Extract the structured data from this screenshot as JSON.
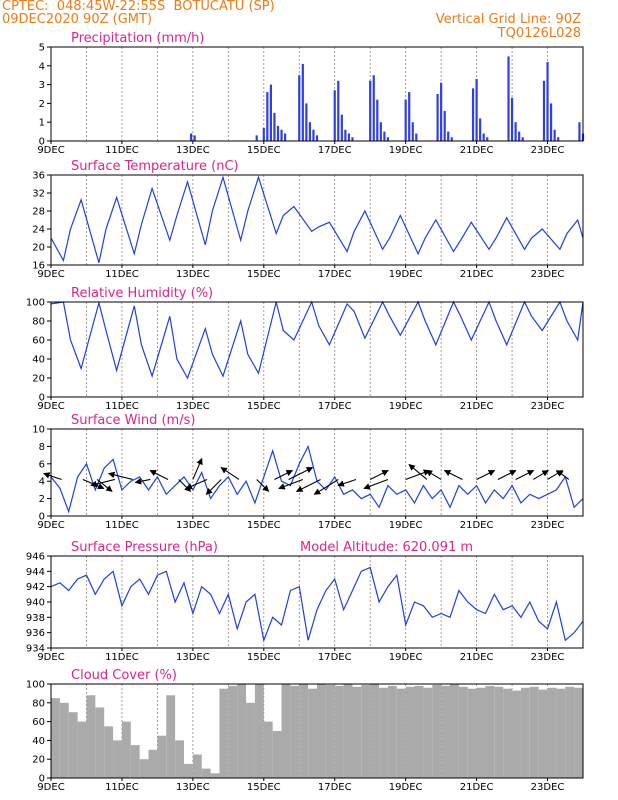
{
  "header": {
    "line1_left": "CPTEC:  048:45W-22:55S  BOTUCATU (SP)",
    "line2_left": "09DEC2020 90Z (GMT)",
    "line1_right": "Vertical Grid Line: 90Z",
    "line2_right": "TQ0126L028"
  },
  "colors": {
    "header": "#f07a14",
    "title": "#e0228f",
    "line": "#2040e0",
    "bar": "#2f3fe6",
    "cloud": "#aaaaaa"
  },
  "chart_data": [
    {
      "type": "bar",
      "title": "Precipitation (mm/h)",
      "ylim": [
        0,
        5
      ],
      "yticks": [
        0,
        1,
        2,
        3,
        4,
        5
      ],
      "xticks": [
        "9DEC",
        "11DEC",
        "13DEC",
        "15DEC",
        "17DEC",
        "19DEC",
        "21DEC",
        "23DEC"
      ],
      "xlim_days": 15,
      "x_days": [
        3.95,
        4.05,
        5.8,
        6.0,
        6.1,
        6.2,
        6.3,
        6.4,
        6.5,
        6.6,
        7.0,
        7.1,
        7.2,
        7.3,
        7.4,
        7.5,
        8.0,
        8.1,
        8.2,
        8.3,
        8.4,
        8.5,
        9.0,
        9.1,
        9.2,
        9.3,
        9.4,
        9.5,
        10.0,
        10.1,
        10.2,
        10.3,
        10.9,
        11.0,
        11.1,
        11.2,
        11.3,
        11.9,
        12.0,
        12.1,
        12.2,
        12.3,
        12.9,
        13.0,
        13.1,
        13.2,
        13.3,
        13.9,
        14.0,
        14.1,
        14.2,
        14.3,
        14.9,
        15.0
      ],
      "values": [
        0.4,
        0.3,
        0.3,
        0.7,
        2.6,
        3.0,
        1.5,
        0.8,
        0.6,
        0.4,
        3.5,
        4.1,
        2.0,
        1.0,
        0.6,
        0.3,
        2.7,
        3.2,
        1.4,
        0.6,
        0.4,
        0.2,
        3.2,
        3.5,
        2.2,
        1.0,
        0.5,
        0.2,
        2.2,
        2.6,
        1.0,
        0.4,
        2.5,
        3.1,
        1.6,
        0.5,
        0.2,
        2.8,
        3.3,
        1.2,
        0.4,
        0.2,
        4.5,
        2.3,
        1.0,
        0.5,
        0.2,
        3.2,
        4.2,
        2.0,
        0.6,
        0.2,
        1.0,
        0.4
      ]
    },
    {
      "type": "line",
      "title": "Surface Temperature (nC)",
      "ylim": [
        16,
        36
      ],
      "yticks": [
        16,
        20,
        24,
        28,
        32,
        36
      ],
      "xticks": [
        "9DEC",
        "11DEC",
        "13DEC",
        "15DEC",
        "17DEC",
        "19DEC",
        "21DEC",
        "23DEC"
      ],
      "xlim_days": 15,
      "x_days": [
        0,
        0.35,
        0.55,
        0.85,
        1.35,
        1.55,
        1.85,
        2.35,
        2.55,
        2.85,
        3.35,
        3.55,
        3.85,
        4.35,
        4.55,
        4.85,
        5.35,
        5.55,
        5.85,
        6.35,
        6.55,
        6.85,
        7.35,
        7.55,
        7.85,
        8.35,
        8.55,
        8.85,
        9.35,
        9.55,
        9.85,
        10.35,
        10.55,
        10.85,
        11.35,
        11.55,
        11.85,
        12.35,
        12.55,
        12.85,
        13.35,
        13.55,
        13.85,
        14.35,
        14.55,
        14.85,
        15.0
      ],
      "values": [
        22,
        17,
        24,
        30.5,
        16.5,
        24,
        31,
        18.5,
        25,
        33,
        21.5,
        27,
        34.5,
        20.5,
        28,
        35.5,
        21.5,
        28,
        35.5,
        23,
        27,
        29,
        23.5,
        24.5,
        25.5,
        19,
        23.5,
        28,
        19.5,
        22,
        27,
        18.5,
        22,
        26,
        19,
        21.5,
        25.5,
        19.5,
        22,
        26.5,
        19.5,
        22,
        24,
        19.5,
        23,
        26,
        22
      ]
    },
    {
      "type": "line",
      "title": "Relative Humidity (%)",
      "ylim": [
        0,
        100
      ],
      "yticks": [
        0,
        20,
        40,
        60,
        80,
        100
      ],
      "xticks": [
        "9DEC",
        "11DEC",
        "13DEC",
        "15DEC",
        "17DEC",
        "19DEC",
        "21DEC",
        "23DEC"
      ],
      "xlim_days": 15,
      "x_days": [
        0,
        0.35,
        0.55,
        0.85,
        1.35,
        1.55,
        1.85,
        2.35,
        2.55,
        2.85,
        3.35,
        3.55,
        3.85,
        4.35,
        4.55,
        4.85,
        5.35,
        5.55,
        5.85,
        6.35,
        6.55,
        6.85,
        7.35,
        7.55,
        7.85,
        8.35,
        8.55,
        8.85,
        9.35,
        9.55,
        9.85,
        10.35,
        10.55,
        10.85,
        11.35,
        11.55,
        11.85,
        12.35,
        12.55,
        12.85,
        13.35,
        13.55,
        13.85,
        14.35,
        14.55,
        14.85,
        15.0
      ],
      "values": [
        98,
        100,
        60,
        30,
        99,
        70,
        28,
        96,
        55,
        22,
        85,
        40,
        20,
        72,
        45,
        22,
        80,
        45,
        25,
        100,
        70,
        60,
        100,
        75,
        55,
        98,
        90,
        62,
        100,
        85,
        65,
        100,
        80,
        55,
        100,
        85,
        60,
        100,
        80,
        55,
        100,
        85,
        70,
        100,
        80,
        60,
        100
      ]
    },
    {
      "type": "line",
      "title": "Surface Wind (m/s)",
      "ylim": [
        0,
        10
      ],
      "yticks": [
        0,
        2,
        4,
        6,
        8,
        10
      ],
      "xticks": [
        "9DEC",
        "11DEC",
        "13DEC",
        "15DEC",
        "17DEC",
        "19DEC",
        "21DEC",
        "23DEC"
      ],
      "xlim_days": 15,
      "x_days": [
        0,
        0.25,
        0.5,
        0.75,
        1.0,
        1.25,
        1.5,
        1.75,
        2.0,
        2.25,
        2.5,
        2.75,
        3.0,
        3.25,
        3.5,
        3.75,
        4.0,
        4.25,
        4.5,
        4.75,
        5.0,
        5.25,
        5.5,
        5.75,
        6.0,
        6.25,
        6.5,
        6.75,
        7.0,
        7.25,
        7.5,
        7.75,
        8.0,
        8.25,
        8.5,
        8.75,
        9.0,
        9.25,
        9.5,
        9.75,
        10.0,
        10.25,
        10.5,
        10.75,
        11.0,
        11.25,
        11.5,
        11.75,
        12.0,
        12.25,
        12.5,
        12.75,
        13.0,
        13.25,
        13.5,
        13.75,
        14.0,
        14.25,
        14.5,
        14.75,
        15.0
      ],
      "values": [
        4.5,
        3.2,
        0.5,
        4.5,
        6.0,
        3.0,
        5.5,
        6.5,
        3.0,
        4.0,
        4.5,
        3.0,
        4.5,
        2.5,
        3.5,
        4.5,
        3.0,
        5.0,
        2.0,
        3.5,
        4.5,
        2.5,
        4.0,
        1.5,
        4.5,
        7.5,
        4.0,
        3.5,
        6.0,
        8.0,
        4.0,
        3.0,
        4.5,
        2.5,
        3.0,
        2.0,
        2.5,
        1.0,
        3.5,
        2.5,
        3.0,
        1.5,
        3.5,
        2.0,
        3.0,
        1.0,
        3.5,
        2.5,
        3.5,
        1.5,
        3.0,
        2.0,
        3.5,
        1.5,
        2.5,
        2.0,
        2.5,
        3.0,
        4.5,
        1.0,
        2.0
      ],
      "vectors": {
        "x_days": [
          0.3,
          0.9,
          1.3,
          1.8,
          2.3,
          2.8,
          3.3,
          3.6,
          4.0,
          4.4,
          4.8,
          5.3,
          5.8,
          6.3,
          6.7,
          7.1,
          7.6,
          8.1,
          8.6,
          9.0,
          9.5,
          10.0,
          10.6,
          11.0,
          11.6,
          12.0,
          12.6,
          13.1,
          13.6,
          14.0,
          14.6
        ],
        "dx": [
          -6,
          7,
          5,
          -8,
          -8,
          -5,
          -6,
          4,
          3,
          -7,
          -5,
          -6,
          4,
          6,
          8,
          -8,
          -8,
          -8,
          -6,
          6,
          -8,
          8,
          -6,
          -5,
          -6,
          6,
          6,
          6,
          5,
          5,
          -4
        ],
        "dy": [
          -2,
          3,
          4,
          2,
          -2,
          1,
          -3,
          4,
          -7,
          3,
          5,
          -4,
          4,
          -3,
          -4,
          3,
          4,
          5,
          2,
          -3,
          3,
          -3,
          -5,
          -3,
          -3,
          -3,
          -3,
          -3,
          -3,
          -3,
          -3
        ]
      }
    },
    {
      "type": "line",
      "title": "Surface Pressure (hPa)",
      "annotation": "Model Altitude: 620.091 m",
      "ylim": [
        934,
        946
      ],
      "yticks": [
        934,
        936,
        938,
        940,
        942,
        944,
        946
      ],
      "xticks": [
        "9DEC",
        "11DEC",
        "13DEC",
        "15DEC",
        "17DEC",
        "19DEC",
        "21DEC",
        "23DEC"
      ],
      "xlim_days": 15,
      "x_days": [
        0,
        0.25,
        0.5,
        0.75,
        1.0,
        1.25,
        1.5,
        1.75,
        2.0,
        2.25,
        2.5,
        2.75,
        3.0,
        3.25,
        3.5,
        3.75,
        4.0,
        4.25,
        4.5,
        4.75,
        5.0,
        5.25,
        5.5,
        5.75,
        6.0,
        6.25,
        6.5,
        6.75,
        7.0,
        7.25,
        7.5,
        7.75,
        8.0,
        8.25,
        8.5,
        8.75,
        9.0,
        9.25,
        9.5,
        9.75,
        10.0,
        10.25,
        10.5,
        10.75,
        11.0,
        11.25,
        11.5,
        11.75,
        12.0,
        12.25,
        12.5,
        12.75,
        13.0,
        13.25,
        13.5,
        13.75,
        14.0,
        14.25,
        14.5,
        14.75,
        15.0
      ],
      "values": [
        942,
        942.5,
        941.5,
        943,
        943.5,
        941,
        943,
        944,
        939.5,
        942,
        943,
        941,
        943.5,
        944,
        940,
        942.5,
        938.5,
        942,
        941,
        938.5,
        941,
        936.5,
        940,
        941,
        935,
        938,
        937,
        941.5,
        942,
        935,
        939,
        941.5,
        943,
        939,
        941.5,
        944,
        944.5,
        940,
        942,
        943.5,
        937,
        940,
        939.5,
        938,
        938.5,
        938,
        941.5,
        940,
        939,
        938.5,
        941,
        939,
        939.5,
        938,
        940,
        937.5,
        936.5,
        940,
        935,
        936,
        937.5
      ]
    },
    {
      "type": "bar",
      "title": "Cloud Cover (%)",
      "ylim": [
        0,
        100
      ],
      "yticks": [
        0,
        20,
        40,
        60,
        80,
        100
      ],
      "xticks": [
        "9DEC",
        "11DEC",
        "13DEC",
        "15DEC",
        "17DEC",
        "19DEC",
        "21DEC",
        "23DEC"
      ],
      "xlim_days": 15,
      "x_days": [
        0,
        0.25,
        0.5,
        0.75,
        1.0,
        1.25,
        1.5,
        1.75,
        2.0,
        2.25,
        2.5,
        2.75,
        3.0,
        3.25,
        3.5,
        3.75,
        4.0,
        4.25,
        4.5,
        4.75,
        5.0,
        5.25,
        5.5,
        5.75,
        6.0,
        6.25,
        6.5,
        6.75,
        7.0,
        7.25,
        7.5,
        7.75,
        8.0,
        8.25,
        8.5,
        8.75,
        9.0,
        9.25,
        9.5,
        9.75,
        10.0,
        10.25,
        10.5,
        10.75,
        11.0,
        11.25,
        11.5,
        11.75,
        12.0,
        12.25,
        12.5,
        12.75,
        13.0,
        13.25,
        13.5,
        13.75,
        14.0,
        14.25,
        14.5,
        14.75
      ],
      "values": [
        85,
        80,
        70,
        60,
        88,
        75,
        55,
        40,
        60,
        35,
        20,
        30,
        45,
        88,
        40,
        15,
        25,
        10,
        5,
        95,
        98,
        100,
        80,
        100,
        60,
        50,
        100,
        98,
        100,
        95,
        100,
        99,
        98,
        100,
        97,
        99,
        100,
        96,
        98,
        95,
        97,
        98,
        96,
        99,
        98,
        100,
        97,
        95,
        96,
        98,
        97,
        95,
        93,
        96,
        97,
        94,
        96,
        95,
        97,
        96
      ]
    }
  ]
}
